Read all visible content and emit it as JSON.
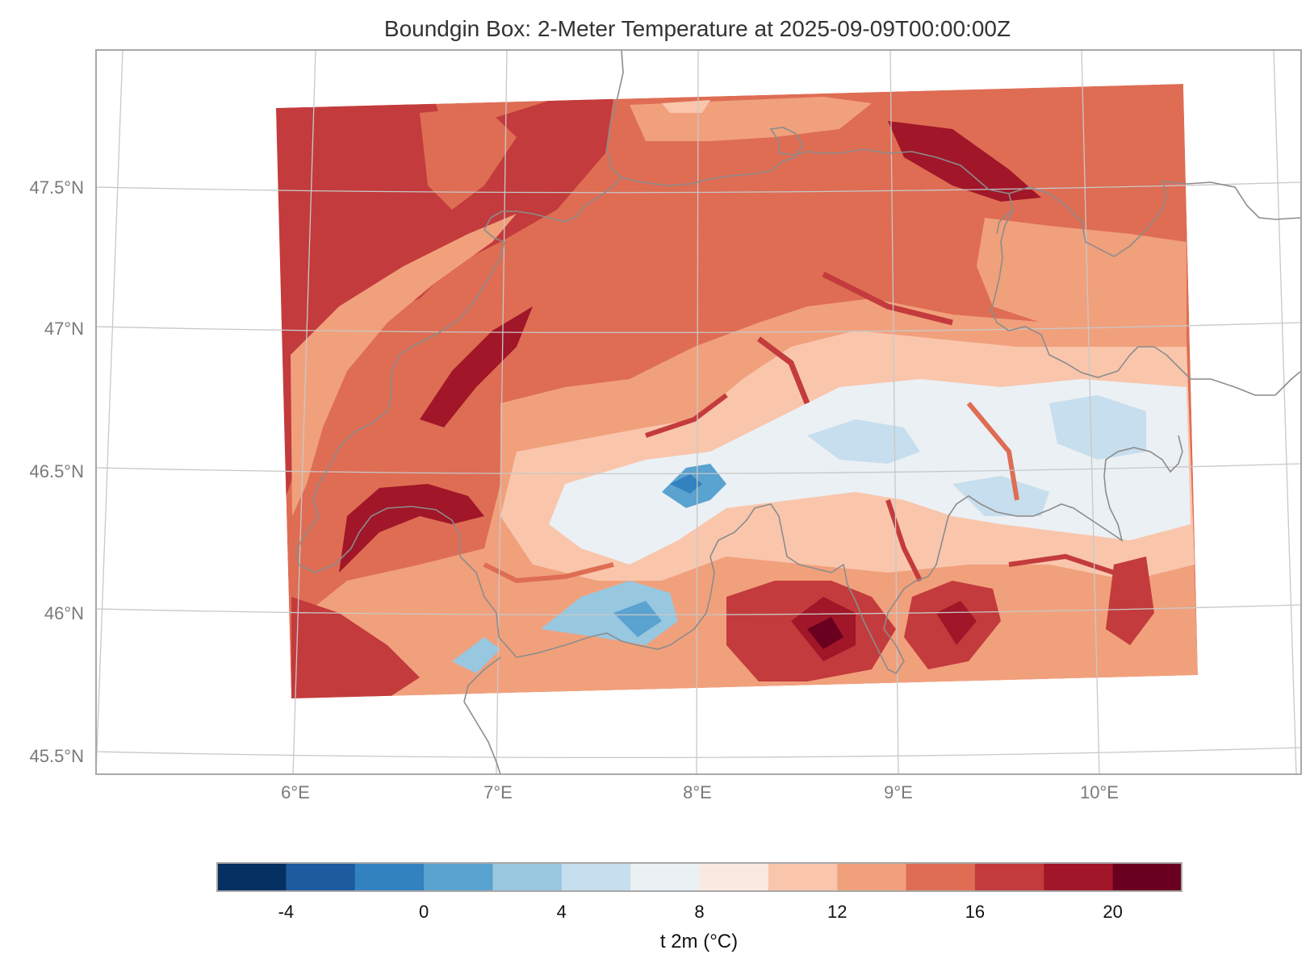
{
  "title": "Boundgin Box: 2-Meter Temperature at 2025-09-09T00:00:00Z",
  "map": {
    "lon_ticks": [
      "6°E",
      "7°E",
      "8°E",
      "9°E",
      "10°E"
    ],
    "lat_ticks": [
      "47.5°N",
      "47°N",
      "46.5°N",
      "46°N",
      "45.5°N"
    ],
    "gridline_color": "#c8c8c8",
    "border_color": "#8c8c8c"
  },
  "colorbar": {
    "label": "t 2m (°C)",
    "tick_labels": [
      "-4",
      "0",
      "4",
      "8",
      "12",
      "16",
      "20"
    ],
    "range": [
      -6,
      22
    ],
    "colors": [
      "#053061",
      "#1d5a9e",
      "#3282c0",
      "#5aa2cf",
      "#98c7e0",
      "#c6deed",
      "#ebf0f4",
      "#f9e9e1",
      "#f9c6ac",
      "#f1a07c",
      "#de6d54",
      "#c33b3c",
      "#a11628",
      "#6a0020"
    ]
  }
}
